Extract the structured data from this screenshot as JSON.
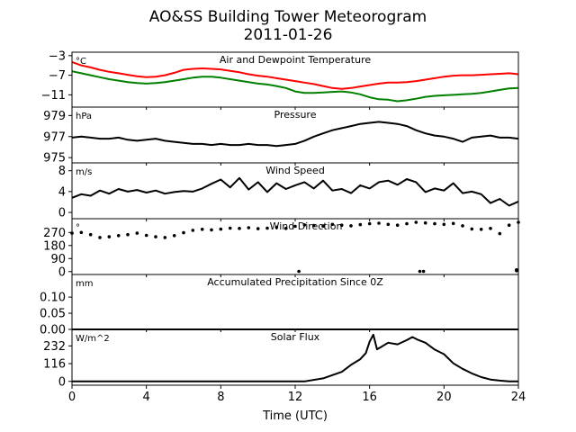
{
  "figure": {
    "title_line1": "AO&SS Building Tower Meteorogram",
    "title_line2": "2011-01-26",
    "xlabel": "Time (UTC)"
  },
  "x_axis": {
    "range": [
      0,
      24
    ],
    "ticks": [
      0,
      4,
      8,
      12,
      16,
      20,
      24
    ],
    "tick_labels": [
      "0",
      "4",
      "8",
      "12",
      "16",
      "20",
      "24"
    ]
  },
  "chart_data": [
    {
      "type": "line",
      "title": "Air and Dewpoint Temperature",
      "unit": "°C",
      "ylim": [
        -13.5,
        -2.3
      ],
      "yticks": [
        -3,
        -7,
        -11
      ],
      "ytick_labels": [
        "−3",
        "−7",
        "−11"
      ],
      "series": [
        {
          "color": "#ff0000",
          "x": [
            0,
            0.5,
            1,
            1.5,
            2,
            2.5,
            3,
            3.5,
            4,
            4.5,
            5,
            5.5,
            6,
            6.5,
            7,
            7.5,
            8,
            8.5,
            9,
            9.5,
            10,
            10.5,
            11,
            11.5,
            12,
            12.5,
            13,
            13.5,
            14,
            14.5,
            15,
            15.5,
            16,
            16.5,
            17,
            17.5,
            18,
            18.5,
            19,
            19.5,
            20,
            20.5,
            21,
            21.5,
            22,
            22.5,
            23,
            23.5,
            24
          ],
          "values": [
            -4.3,
            -5.0,
            -5.4,
            -5.9,
            -6.3,
            -6.6,
            -6.9,
            -7.2,
            -7.4,
            -7.3,
            -7.0,
            -6.5,
            -5.9,
            -5.7,
            -5.6,
            -5.7,
            -5.8,
            -6.1,
            -6.4,
            -6.8,
            -7.1,
            -7.3,
            -7.6,
            -7.9,
            -8.2,
            -8.5,
            -8.8,
            -9.2,
            -9.6,
            -9.8,
            -9.6,
            -9.3,
            -9.0,
            -8.7,
            -8.5,
            -8.5,
            -8.4,
            -8.2,
            -7.9,
            -7.6,
            -7.3,
            -7.1,
            -7.0,
            -7.0,
            -6.9,
            -6.8,
            -6.7,
            -6.6,
            -6.8
          ]
        },
        {
          "color": "#008000",
          "x": [
            0,
            0.5,
            1,
            1.5,
            2,
            2.5,
            3,
            3.5,
            4,
            4.5,
            5,
            5.5,
            6,
            6.5,
            7,
            7.5,
            8,
            8.5,
            9,
            9.5,
            10,
            10.5,
            11,
            11.5,
            12,
            12.5,
            13,
            13.5,
            14,
            14.5,
            15,
            15.5,
            16,
            16.5,
            17,
            17.5,
            18,
            18.5,
            19,
            19.5,
            20,
            20.5,
            21,
            21.5,
            22,
            22.5,
            23,
            23.5,
            24
          ],
          "values": [
            -6.2,
            -6.6,
            -7.0,
            -7.4,
            -7.8,
            -8.1,
            -8.4,
            -8.6,
            -8.7,
            -8.6,
            -8.4,
            -8.1,
            -7.8,
            -7.5,
            -7.3,
            -7.3,
            -7.5,
            -7.8,
            -8.1,
            -8.4,
            -8.7,
            -8.9,
            -9.2,
            -9.6,
            -10.3,
            -10.6,
            -10.6,
            -10.5,
            -10.4,
            -10.3,
            -10.5,
            -10.9,
            -11.5,
            -11.9,
            -12.0,
            -12.3,
            -12.1,
            -11.8,
            -11.4,
            -11.2,
            -11.1,
            -11.0,
            -10.9,
            -10.8,
            -10.6,
            -10.3,
            -10.0,
            -9.7,
            -9.6
          ]
        }
      ]
    },
    {
      "type": "line",
      "title": "Pressure",
      "unit": "hPa",
      "ylim": [
        974.5,
        979.8
      ],
      "yticks": [
        979,
        977,
        975
      ],
      "ytick_labels": [
        "979",
        "977",
        "975"
      ],
      "series": [
        {
          "color": "#000000",
          "x": [
            0,
            0.5,
            1,
            1.5,
            2,
            2.5,
            3,
            3.5,
            4,
            4.5,
            5,
            5.5,
            6,
            6.5,
            7,
            7.5,
            8,
            8.5,
            9,
            9.5,
            10,
            10.5,
            11,
            11.5,
            12,
            12.5,
            13,
            13.5,
            14,
            14.5,
            15,
            15.5,
            16,
            16.5,
            17,
            17.5,
            18,
            18.5,
            19,
            19.5,
            20,
            20.5,
            21,
            21.5,
            22,
            22.5,
            23,
            23.5,
            24
          ],
          "values": [
            976.9,
            977.0,
            976.9,
            976.8,
            976.8,
            976.9,
            976.7,
            976.6,
            976.7,
            976.8,
            976.6,
            976.5,
            976.4,
            976.3,
            976.3,
            976.2,
            976.3,
            976.2,
            976.2,
            976.3,
            976.2,
            976.2,
            976.1,
            976.2,
            976.3,
            976.6,
            977.0,
            977.3,
            977.6,
            977.8,
            978.0,
            978.2,
            978.3,
            978.4,
            978.3,
            978.2,
            978.0,
            977.6,
            977.3,
            977.1,
            977.0,
            976.8,
            976.5,
            976.9,
            977.0,
            977.1,
            976.9,
            976.9,
            976.8
          ]
        }
      ]
    },
    {
      "type": "line",
      "title": "Wind Speed",
      "unit": "m/s",
      "ylim": [
        -1.2,
        9.5
      ],
      "yticks": [
        8,
        4,
        0
      ],
      "ytick_labels": [
        "8",
        "4",
        "0"
      ],
      "series": [
        {
          "color": "#000000",
          "x": [
            0,
            0.5,
            1,
            1.5,
            2,
            2.5,
            3,
            3.5,
            4,
            4.5,
            5,
            5.5,
            6,
            6.5,
            7,
            7.5,
            8,
            8.5,
            9,
            9.5,
            10,
            10.5,
            11,
            11.5,
            12,
            12.5,
            13,
            13.5,
            14,
            14.5,
            15,
            15.5,
            16,
            16.5,
            17,
            17.5,
            18,
            18.5,
            19,
            19.5,
            20,
            20.5,
            21,
            21.5,
            22,
            22.5,
            23,
            23.5,
            24
          ],
          "values": [
            2.8,
            3.5,
            3.2,
            4.2,
            3.6,
            4.5,
            4.0,
            4.3,
            3.8,
            4.2,
            3.6,
            3.9,
            4.1,
            4.0,
            4.6,
            5.5,
            6.3,
            4.8,
            6.6,
            4.4,
            5.8,
            3.9,
            5.6,
            4.5,
            5.2,
            5.8,
            4.6,
            6.1,
            4.2,
            4.5,
            3.7,
            5.2,
            4.6,
            5.8,
            6.1,
            5.3,
            6.4,
            5.8,
            3.9,
            4.6,
            4.2,
            5.6,
            3.7,
            4.0,
            3.5,
            1.8,
            2.6,
            1.3,
            2.1
          ]
        }
      ]
    },
    {
      "type": "scatter",
      "title": "Wind Direction",
      "unit": "°",
      "ylim": [
        -20,
        365
      ],
      "yticks": [
        270,
        180,
        90,
        0
      ],
      "ytick_labels": [
        "270",
        "180",
        "90",
        "0"
      ],
      "series": [
        {
          "color": "#000000",
          "x": [
            0,
            0.5,
            1,
            1.5,
            2,
            2.5,
            3,
            3.5,
            4,
            4.5,
            5,
            5.5,
            6,
            6.5,
            7,
            7.5,
            8,
            8.5,
            9,
            9.5,
            10,
            10.5,
            11,
            11.5,
            12,
            12.5,
            13,
            13.5,
            14,
            14.5,
            15,
            15.5,
            16,
            16.5,
            17,
            17.5,
            18,
            18.5,
            19,
            19.5,
            20,
            20.5,
            21,
            21.5,
            22,
            22.5,
            23,
            23.5,
            24
          ],
          "values": [
            265,
            270,
            255,
            235,
            240,
            248,
            255,
            265,
            250,
            240,
            235,
            248,
            268,
            285,
            292,
            288,
            293,
            300,
            298,
            303,
            296,
            300,
            306,
            298,
            312,
            322,
            318,
            314,
            326,
            320,
            316,
            324,
            330,
            334,
            326,
            320,
            330,
            340,
            336,
            330,
            326,
            332,
            316,
            294,
            292,
            298,
            262,
            320,
            340
          ]
        },
        {
          "color": "#000000",
          "x": [
            12.2,
            18.7,
            18.9,
            23.9,
            23.9
          ],
          "values": [
            2,
            2,
            2,
            6,
            12
          ]
        }
      ]
    },
    {
      "type": "line",
      "title": "Accumulated Precipitation Since 0Z",
      "unit": "mm",
      "ylim": [
        0,
        0.17
      ],
      "yticks": [
        0.1,
        0.05,
        0.0
      ],
      "ytick_labels": [
        "0.10",
        "0.05",
        "0.00"
      ],
      "series": [
        {
          "color": "#000000",
          "x": [
            0,
            24
          ],
          "values": [
            0,
            0
          ]
        }
      ]
    },
    {
      "type": "line",
      "title": "Solar Flux",
      "unit": "W/m^2",
      "ylim": [
        -25,
        340
      ],
      "yticks": [
        232,
        116,
        0
      ],
      "ytick_labels": [
        "232",
        "116",
        "0"
      ],
      "series": [
        {
          "color": "#000000",
          "x": [
            0,
            12.5,
            13.5,
            14.5,
            15.0,
            15.5,
            15.8,
            16.0,
            16.2,
            16.4,
            16.6,
            17.0,
            17.5,
            18.0,
            18.3,
            18.6,
            19.0,
            19.5,
            20.0,
            20.5,
            21.0,
            21.5,
            22.0,
            22.5,
            23.0,
            23.5,
            24.0
          ],
          "values": [
            0,
            0,
            20,
            62,
            108,
            145,
            185,
            260,
            305,
            210,
            224,
            253,
            242,
            270,
            290,
            272,
            253,
            208,
            178,
            118,
            82,
            52,
            28,
            12,
            5,
            0,
            0
          ]
        }
      ]
    }
  ]
}
